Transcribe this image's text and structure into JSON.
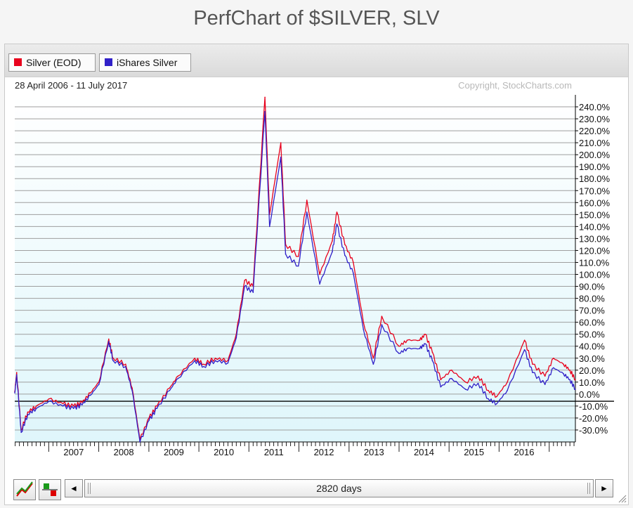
{
  "title_prefix": "PerfChart of ",
  "title_symbols": "$SILVER, SLV",
  "legend": [
    {
      "label": "Silver (EOD)",
      "color": "#e8001c"
    },
    {
      "label": "iShares Silver",
      "color": "#3020c8"
    }
  ],
  "date_range": "28 April 2006 - 11 July 2017",
  "copyright": "Copyright, StockCharts.com",
  "footer": {
    "range_label": "2820 days",
    "left_arrow": "◄",
    "right_arrow": "►"
  },
  "chart_data": {
    "type": "line",
    "title": "PerfChart of $SILVER, SLV",
    "x_unit": "date",
    "xlim": [
      "2006-04-28",
      "2017-07-11"
    ],
    "ylim": [
      -40,
      250
    ],
    "y_ticks": [
      240,
      230,
      220,
      210,
      200,
      190,
      180,
      170,
      160,
      150,
      140,
      130,
      120,
      110,
      100,
      90,
      80,
      70,
      60,
      50,
      40,
      30,
      20,
      10,
      0,
      -10,
      -20,
      -30
    ],
    "y_tick_labels": [
      "240.0%",
      "230.0%",
      "220.0%",
      "210.0%",
      "200.0%",
      "190.0%",
      "180.0%",
      "170.0%",
      "160.0%",
      "150.0%",
      "140.0%",
      "130.0%",
      "120.0%",
      "110.0%",
      "100.0%",
      "90.0%",
      "80.0%",
      "70.0%",
      "60.0%",
      "50.0%",
      "40.0%",
      "30.0%",
      "20.0%",
      "10.0%",
      "0.0%",
      "-10.0%",
      "-20.0%",
      "-30.0%"
    ],
    "x_tick_labels": [
      "2007",
      "2008",
      "2009",
      "2010",
      "2011",
      "2012",
      "2013",
      "2014",
      "2015",
      "2016"
    ],
    "zero_line_value": -6,
    "grid": true,
    "legend_position": "top-left",
    "series": [
      {
        "name": "Silver (EOD)",
        "color": "#e8001c",
        "x": [
          "2006-04-28",
          "2006-05-12",
          "2006-06-14",
          "2006-08-01",
          "2006-10-02",
          "2007-01-02",
          "2007-04-15",
          "2007-07-01",
          "2007-09-01",
          "2007-11-01",
          "2008-01-02",
          "2008-03-14",
          "2008-04-15",
          "2008-07-15",
          "2008-09-01",
          "2008-10-28",
          "2009-01-02",
          "2009-03-01",
          "2009-06-01",
          "2009-08-01",
          "2009-12-02",
          "2010-02-05",
          "2010-05-01",
          "2010-08-01",
          "2010-10-01",
          "2010-12-01",
          "2011-02-01",
          "2011-04-28",
          "2011-06-01",
          "2011-08-22",
          "2011-09-26",
          "2011-12-28",
          "2012-02-28",
          "2012-06-01",
          "2012-09-01",
          "2012-10-04",
          "2012-12-01",
          "2013-02-01",
          "2013-04-16",
          "2013-06-27",
          "2013-08-28",
          "2013-12-31",
          "2014-03-01",
          "2014-06-01",
          "2014-07-11",
          "2014-09-01",
          "2014-11-01",
          "2015-01-20",
          "2015-05-01",
          "2015-08-01",
          "2015-10-15",
          "2015-12-15",
          "2016-03-01",
          "2016-07-05",
          "2016-09-01",
          "2016-12-01",
          "2017-02-01",
          "2017-04-15",
          "2017-06-01",
          "2017-07-11"
        ],
        "y": [
          2,
          18,
          -30,
          -15,
          -10,
          -4,
          -8,
          -10,
          -7,
          1,
          10,
          46,
          30,
          25,
          5,
          -38,
          -20,
          -10,
          5,
          15,
          30,
          25,
          30,
          28,
          50,
          95,
          90,
          248,
          150,
          210,
          125,
          115,
          162,
          100,
          128,
          152,
          125,
          110,
          60,
          30,
          65,
          40,
          45,
          45,
          50,
          35,
          12,
          20,
          10,
          15,
          3,
          -2,
          10,
          45,
          25,
          15,
          30,
          25,
          20,
          12
        ]
      },
      {
        "name": "iShares Silver",
        "color": "#3020c8",
        "x": [
          "2006-04-28",
          "2006-05-12",
          "2006-06-14",
          "2006-08-01",
          "2006-10-02",
          "2007-01-02",
          "2007-04-15",
          "2007-07-01",
          "2007-09-01",
          "2007-11-01",
          "2008-01-02",
          "2008-03-14",
          "2008-04-15",
          "2008-07-15",
          "2008-09-01",
          "2008-10-28",
          "2009-01-02",
          "2009-03-01",
          "2009-06-01",
          "2009-08-01",
          "2009-12-02",
          "2010-02-05",
          "2010-05-01",
          "2010-08-01",
          "2010-10-01",
          "2010-12-01",
          "2011-02-01",
          "2011-04-28",
          "2011-06-01",
          "2011-08-22",
          "2011-09-26",
          "2011-12-28",
          "2012-02-28",
          "2012-06-01",
          "2012-09-01",
          "2012-10-04",
          "2012-12-01",
          "2013-02-01",
          "2013-04-16",
          "2013-06-27",
          "2013-08-28",
          "2013-12-31",
          "2014-03-01",
          "2014-06-01",
          "2014-07-11",
          "2014-09-01",
          "2014-11-01",
          "2015-01-20",
          "2015-05-01",
          "2015-08-01",
          "2015-10-15",
          "2015-12-15",
          "2016-03-01",
          "2016-07-05",
          "2016-09-01",
          "2016-12-01",
          "2017-02-01",
          "2017-04-15",
          "2017-06-01",
          "2017-07-11"
        ],
        "y": [
          1,
          16,
          -32,
          -17,
          -12,
          -6,
          -10,
          -12,
          -9,
          -1,
          8,
          44,
          28,
          23,
          3,
          -40,
          -22,
          -12,
          3,
          13,
          28,
          23,
          28,
          26,
          47,
          90,
          85,
          236,
          140,
          198,
          117,
          107,
          152,
          92,
          119,
          142,
          116,
          101,
          54,
          25,
          58,
          34,
          38,
          38,
          42,
          28,
          6,
          13,
          4,
          9,
          -4,
          -8,
          3,
          37,
          18,
          8,
          22,
          17,
          12,
          4
        ]
      }
    ]
  }
}
